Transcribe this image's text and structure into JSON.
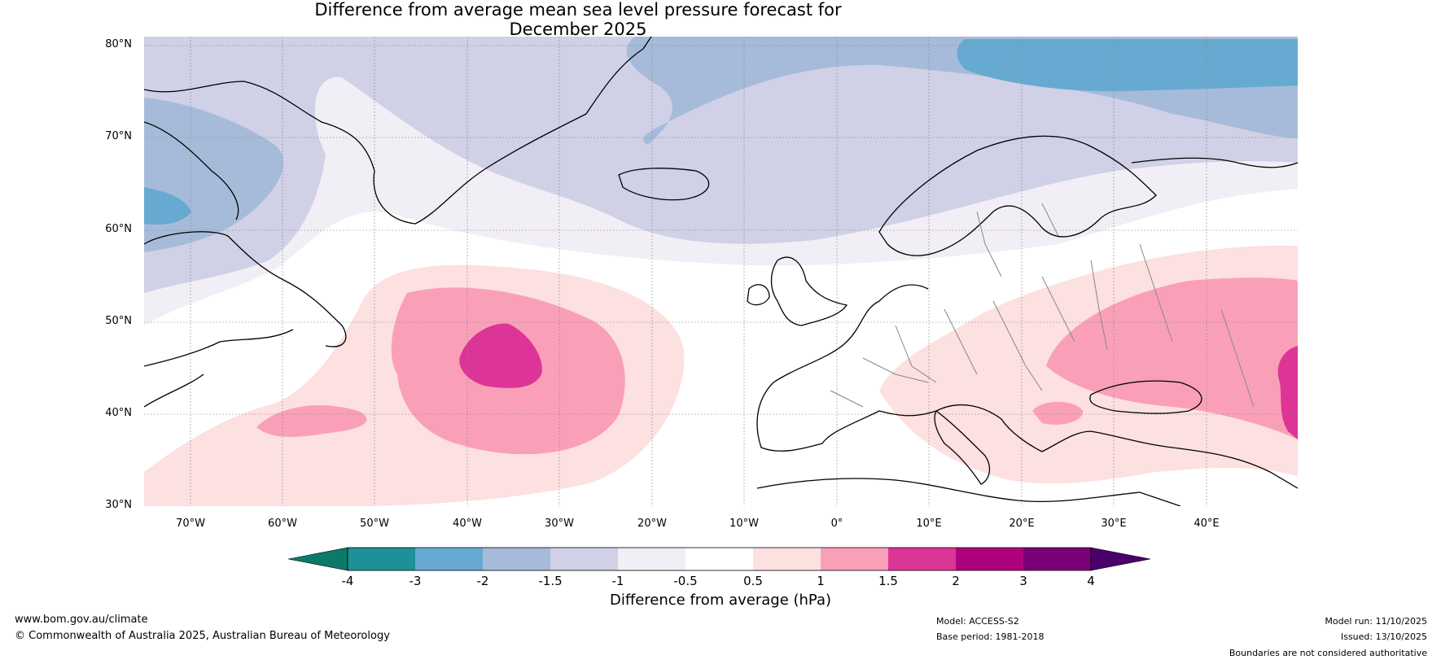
{
  "title": {
    "line1": "Difference from average mean sea level pressure forecast for",
    "line2": "December 2025"
  },
  "map": {
    "lat_labels": [
      "80°N",
      "70°N",
      "60°N",
      "50°N",
      "40°N",
      "30°N"
    ],
    "lon_labels": [
      "70°W",
      "60°W",
      "50°W",
      "40°W",
      "30°W",
      "20°W",
      "10°W",
      "0°",
      "10°E",
      "20°E",
      "30°E",
      "40°E"
    ],
    "anomaly_zones": [
      {
        "name": "Arctic low anomaly",
        "range": "-2 to -3"
      },
      {
        "name": "North Atlantic high anomaly",
        "range": "1.5 to 2"
      },
      {
        "name": "Black Sea high anomaly",
        "range": "1 to 1.5"
      }
    ]
  },
  "colorbar": {
    "tick_labels": [
      "-4",
      "-3",
      "-2",
      "-1.5",
      "-1",
      "-0.5",
      "0.5",
      "1",
      "1.5",
      "2",
      "3",
      "4"
    ],
    "colors": [
      "#1e9099",
      "#66aad1",
      "#a6bbd9",
      "#d0d0e6",
      "#f2eef5",
      "#ffffff",
      "#fde0e0",
      "#f9a0b8",
      "#dd3497",
      "#ae017e",
      "#7a0177"
    ],
    "under_color": "#0b7a6a",
    "over_color": "#49006a",
    "label": "Difference from average (hPa)"
  },
  "footer": {
    "website": "www.bom.gov.au/climate",
    "copyright": "© Commonwealth of Australia 2025, Australian Bureau of Meteorology",
    "model": "Model: ACCESS-S2",
    "base_period": "Base period: 1981-2018",
    "model_run": "Model run: 11/10/2025",
    "issued": "Issued: 13/10/2025",
    "disclaimer": "Boundaries are not considered authoritative"
  }
}
